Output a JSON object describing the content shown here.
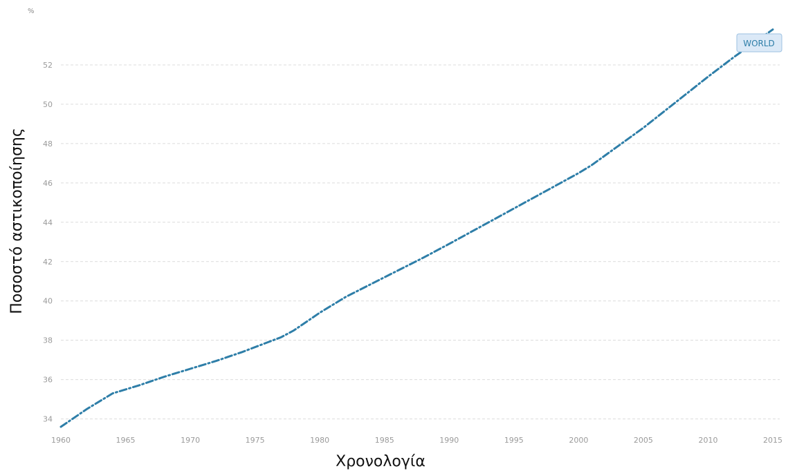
{
  "chart_data": {
    "type": "line",
    "title": "",
    "unit_label": "%",
    "xlabel": "Χρονολογία",
    "ylabel": "Ποσοστό αστικοποίησης",
    "xlim": [
      1960,
      2015
    ],
    "ylim": [
      33.6,
      54
    ],
    "x_ticks": [
      "1960",
      "1965",
      "1970",
      "1975",
      "1980",
      "1985",
      "1990",
      "1995",
      "2000",
      "2005",
      "2010",
      "2015"
    ],
    "y_ticks": [
      "34",
      "36",
      "38",
      "40",
      "42",
      "44",
      "46",
      "48",
      "50",
      "52"
    ],
    "grid": true,
    "series": [
      {
        "name": "WORLD",
        "x": [
          1960,
          1962,
          1964,
          1966,
          1968,
          1970,
          1972,
          1974,
          1976,
          1977,
          1978,
          1980,
          1982,
          1985,
          1988,
          1990,
          1995,
          2000,
          2001,
          2005,
          2010,
          2012,
          2015
        ],
        "y": [
          33.6,
          34.5,
          35.3,
          35.7,
          36.15,
          36.55,
          36.95,
          37.4,
          37.9,
          38.15,
          38.5,
          39.4,
          40.2,
          41.2,
          42.2,
          42.9,
          44.7,
          46.5,
          46.9,
          48.8,
          51.4,
          52.4,
          53.8
        ]
      }
    ],
    "colors": {
      "line": "#2e7ea8",
      "grid": "#dcdcdc",
      "legend_fill": "#dbe9f7",
      "legend_border": "#9cc1e2",
      "legend_text": "#2e7ea8"
    },
    "legend_position": "top-right"
  }
}
